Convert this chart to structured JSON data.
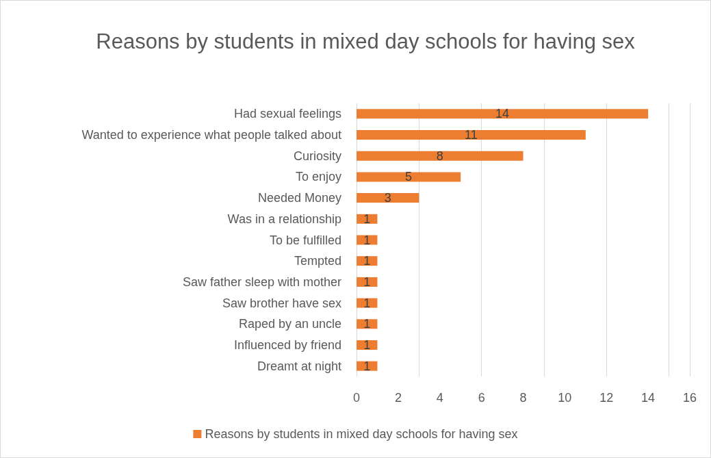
{
  "chart_data": {
    "type": "bar",
    "orientation": "horizontal",
    "title": "Reasons by students in mixed day schools for having sex",
    "categories": [
      "Had sexual feelings",
      "Wanted to experience what people talked about",
      "Curiosity",
      "To enjoy",
      "Needed Money",
      "Was in a relationship",
      "To be fulfilled",
      "Tempted",
      "Saw father sleep with mother",
      "Saw brother have sex",
      "Raped by an uncle",
      "Influenced by friend",
      "Dreamt at night"
    ],
    "series": [
      {
        "name": "Reasons by students in mixed day schools for having sex",
        "color": "#ed7d31",
        "values": [
          14,
          11,
          8,
          5,
          3,
          1,
          1,
          1,
          1,
          1,
          1,
          1,
          1
        ]
      }
    ],
    "xlim": [
      0,
      16
    ],
    "xticks": [
      0,
      2,
      4,
      6,
      8,
      10,
      12,
      14,
      16
    ],
    "grid": "x",
    "legend": "bottom",
    "data_labels": true
  }
}
